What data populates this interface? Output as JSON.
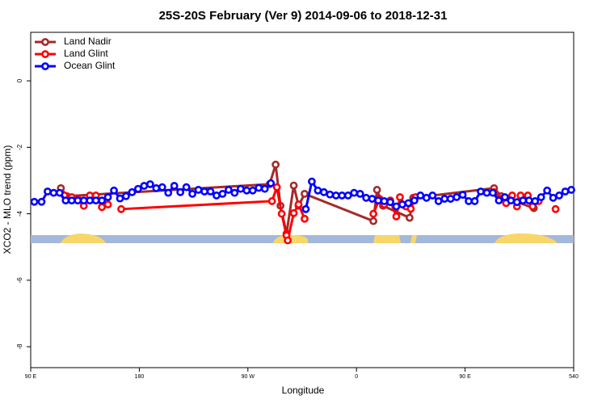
{
  "chart_data": {
    "type": "line",
    "title": "25S-20S February (Ver 9)   2014-09-06 to 2018-12-31",
    "x_label": "Longitude",
    "y_label": "XCO2 - MLO trend (ppm)",
    "xlim": [
      90,
      540
    ],
    "ylim": [
      -8.63,
      1.46
    ],
    "xticks": [
      {
        "value": 90,
        "label": "90 E"
      },
      180,
      {
        "value": 270,
        "label": "90 W"
      },
      {
        "value": 360,
        "label": "0"
      },
      {
        "value": 450,
        "label": "90 E"
      },
      540
    ],
    "yticks": [
      0,
      -2,
      -4,
      -6,
      -8
    ],
    "legend": "top-left",
    "series": [
      {
        "name": "Land Nadir",
        "color": "#a52a2a",
        "x": [
          115,
          120,
          288,
          293,
          297,
          302,
          308,
          312,
          317,
          374,
          377,
          382,
          404,
          407,
          474,
          480,
          507
        ],
        "values": [
          -3.23,
          -3.47,
          -3.11,
          -2.52,
          -3.76,
          -4.6,
          -3.15,
          -3.76,
          -3.4,
          -4.22,
          -3.28,
          -3.76,
          -4.12,
          -3.52,
          -3.23,
          -3.47,
          -3.83
        ]
      },
      {
        "name": "Land Glint",
        "color": "#ff0000",
        "x": [
          118,
          124,
          129,
          134,
          139,
          144,
          149,
          154,
          160,
          165,
          290,
          294,
          298,
          302,
          303,
          308,
          312,
          317,
          340,
          374,
          379,
          383,
          388,
          393,
          396,
          401,
          405,
          409,
          440,
          474,
          480,
          484,
          489,
          493,
          496,
          502,
          506,
          511,
          518,
          525
        ],
        "values": [
          -3.45,
          -3.5,
          -3.55,
          -3.76,
          -3.45,
          -3.45,
          -3.8,
          -3.72,
          null,
          -3.86,
          -3.62,
          -3.2,
          -4.0,
          -4.65,
          -4.8,
          -3.98,
          -3.72,
          -4.15,
          null,
          -4.0,
          -3.55,
          -3.72,
          -3.6,
          -4.08,
          -3.5,
          -3.78,
          -3.85,
          -3.5,
          null,
          -3.35,
          -3.55,
          -3.68,
          -3.45,
          -3.78,
          -3.45,
          -3.45,
          -3.78,
          -3.62,
          null,
          -3.86
        ]
      },
      {
        "name": "Ocean Glint",
        "color": "#0000ff",
        "x": [
          93,
          99,
          104,
          109,
          114,
          119,
          124,
          129,
          134,
          139,
          144,
          149,
          154,
          159,
          164,
          169,
          174,
          179,
          184,
          189,
          194,
          199,
          204,
          209,
          214,
          219,
          224,
          229,
          234,
          239,
          244,
          249,
          254,
          259,
          264,
          269,
          274,
          279,
          284,
          289,
          294,
          318,
          323,
          328,
          333,
          338,
          343,
          348,
          353,
          358,
          363,
          368,
          373,
          378,
          383,
          388,
          393,
          398,
          403,
          408,
          413,
          418,
          423,
          428,
          433,
          438,
          443,
          448,
          453,
          458,
          463,
          468,
          473,
          478,
          483,
          488,
          493,
          498,
          503,
          508,
          513,
          518,
          523,
          528,
          533,
          538
        ],
        "values": [
          -3.64,
          -3.64,
          -3.33,
          -3.37,
          -3.37,
          -3.6,
          -3.6,
          -3.6,
          -3.6,
          -3.6,
          -3.6,
          -3.6,
          -3.5,
          -3.3,
          -3.54,
          -3.47,
          -3.35,
          -3.25,
          -3.16,
          -3.11,
          -3.23,
          -3.2,
          -3.37,
          -3.16,
          -3.35,
          -3.2,
          -3.4,
          -3.28,
          -3.33,
          -3.33,
          -3.45,
          -3.4,
          -3.28,
          -3.37,
          -3.25,
          -3.3,
          -3.3,
          -3.22,
          -3.25,
          -3.08,
          null,
          -3.86,
          -3.03,
          -3.3,
          -3.35,
          -3.42,
          -3.45,
          -3.45,
          -3.45,
          -3.37,
          -3.4,
          -3.52,
          -3.55,
          -3.6,
          -3.62,
          -3.65,
          -3.78,
          -3.72,
          -3.68,
          -3.6,
          -3.45,
          -3.52,
          -3.45,
          -3.62,
          -3.55,
          -3.55,
          -3.5,
          -3.43,
          -3.62,
          -3.62,
          -3.33,
          -3.37,
          -3.37,
          -3.6,
          -3.5,
          -3.6,
          -3.65,
          -3.6,
          -3.6,
          -3.62,
          -3.5,
          -3.3,
          -3.52,
          -3.45,
          -3.33,
          -3.28
        ]
      }
    ]
  }
}
